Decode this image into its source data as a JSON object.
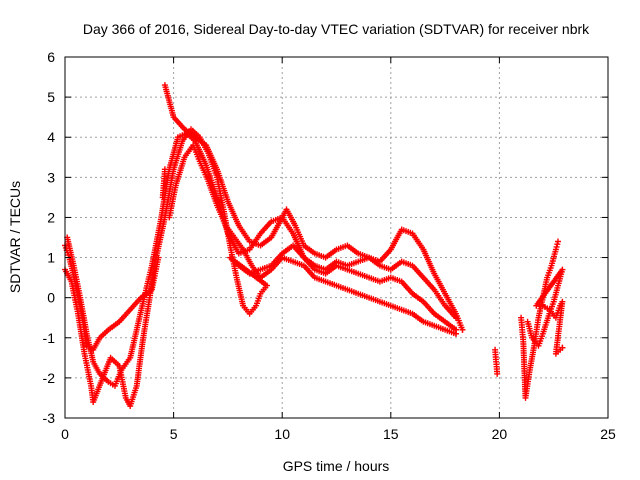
{
  "chart_data": {
    "type": "scatter",
    "title": "Day 366 of 2016, Sidereal Day-to-day VTEC variation (SDTVAR) for receiver nbrk",
    "xlabel": "GPS time / hours",
    "ylabel": "SDTVAR / TECUs",
    "xlim": [
      0,
      25
    ],
    "ylim": [
      -3,
      6
    ],
    "xticks": [
      "0",
      "5",
      "10",
      "15",
      "20",
      "25"
    ],
    "yticks": [
      "-3",
      "-2",
      "-1",
      "0",
      "1",
      "2",
      "3",
      "4",
      "5",
      "6"
    ],
    "grid": true,
    "marker": "plus",
    "color": "#ff0000",
    "series": [
      {
        "name": "track-1",
        "points": [
          [
            0.0,
            1.3
          ],
          [
            0.2,
            1.0
          ],
          [
            0.5,
            0.3
          ],
          [
            0.8,
            -0.5
          ],
          [
            1.0,
            -1.2
          ],
          [
            1.3,
            -1.3
          ],
          [
            1.6,
            -1.0
          ],
          [
            2.0,
            -0.8
          ],
          [
            2.5,
            -0.6
          ],
          [
            3.0,
            -0.3
          ],
          [
            3.5,
            0.0
          ],
          [
            4.0,
            0.2
          ],
          [
            4.3,
            1.0
          ],
          [
            4.5,
            2.5
          ],
          [
            4.6,
            3.2
          ],
          [
            4.6,
            5.3
          ],
          [
            5.0,
            4.5
          ],
          [
            5.5,
            4.2
          ],
          [
            6.0,
            4.0
          ],
          [
            6.5,
            3.8
          ],
          [
            7.0,
            3.2
          ],
          [
            7.5,
            2.4
          ],
          [
            8.0,
            1.8
          ],
          [
            8.5,
            1.4
          ],
          [
            9.0,
            1.3
          ],
          [
            9.5,
            1.5
          ],
          [
            10.0,
            2.0
          ],
          [
            10.2,
            2.2
          ],
          [
            10.6,
            1.8
          ],
          [
            11.0,
            1.3
          ],
          [
            11.5,
            1.1
          ],
          [
            12.0,
            1.0
          ],
          [
            12.5,
            1.2
          ],
          [
            13.0,
            1.3
          ],
          [
            13.5,
            1.1
          ],
          [
            14.0,
            1.0
          ],
          [
            14.5,
            0.9
          ],
          [
            15.0,
            1.2
          ],
          [
            15.5,
            1.7
          ],
          [
            16.0,
            1.6
          ],
          [
            16.5,
            1.2
          ],
          [
            17.0,
            0.6
          ],
          [
            17.5,
            0.1
          ],
          [
            18.0,
            -0.4
          ],
          [
            18.3,
            -0.8
          ]
        ]
      },
      {
        "name": "track-2",
        "points": [
          [
            0.1,
            1.5
          ],
          [
            0.4,
            0.8
          ],
          [
            0.7,
            0.0
          ],
          [
            1.0,
            -0.9
          ],
          [
            1.3,
            -1.6
          ],
          [
            1.6,
            -1.9
          ],
          [
            2.0,
            -2.1
          ],
          [
            2.3,
            -2.2
          ],
          [
            2.6,
            -1.8
          ],
          [
            3.0,
            -1.5
          ],
          [
            3.3,
            -0.8
          ],
          [
            3.6,
            -0.1
          ],
          [
            4.0,
            0.8
          ],
          [
            4.4,
            1.9
          ],
          [
            4.8,
            3.2
          ],
          [
            5.2,
            4.0
          ],
          [
            5.6,
            4.1
          ],
          [
            6.0,
            3.9
          ],
          [
            6.5,
            3.3
          ],
          [
            7.0,
            2.5
          ],
          [
            7.5,
            1.6
          ],
          [
            8.0,
            1.1
          ],
          [
            8.5,
            1.2
          ],
          [
            9.0,
            1.6
          ],
          [
            9.5,
            1.9
          ],
          [
            10.0,
            2.0
          ],
          [
            10.5,
            1.6
          ],
          [
            11.0,
            1.0
          ],
          [
            11.5,
            0.7
          ],
          [
            12.0,
            0.6
          ],
          [
            12.5,
            0.8
          ],
          [
            13.0,
            0.7
          ],
          [
            13.5,
            0.6
          ],
          [
            14.0,
            0.5
          ],
          [
            14.5,
            0.4
          ],
          [
            15.0,
            0.5
          ],
          [
            15.5,
            0.4
          ],
          [
            16.0,
            0.1
          ],
          [
            16.5,
            -0.1
          ],
          [
            17.0,
            -0.4
          ],
          [
            17.5,
            -0.6
          ],
          [
            18.0,
            -0.8
          ]
        ]
      },
      {
        "name": "track-3",
        "points": [
          [
            0.0,
            0.7
          ],
          [
            0.3,
            0.4
          ],
          [
            0.6,
            -0.4
          ],
          [
            0.9,
            -1.4
          ],
          [
            1.2,
            -2.2
          ],
          [
            1.3,
            -2.6
          ],
          [
            2.1,
            -1.5
          ],
          [
            2.5,
            -1.7
          ],
          [
            2.8,
            -2.5
          ],
          [
            3.0,
            -2.7
          ],
          [
            3.3,
            -2.2
          ],
          [
            3.6,
            -1.0
          ],
          [
            3.9,
            0.0
          ],
          [
            4.2,
            1.0
          ],
          [
            4.6,
            2.0
          ],
          [
            5.0,
            3.2
          ],
          [
            5.4,
            3.9
          ],
          [
            5.8,
            4.2
          ],
          [
            6.2,
            4.0
          ],
          [
            6.6,
            3.6
          ],
          [
            7.0,
            3.0
          ],
          [
            7.3,
            2.2
          ],
          [
            7.6,
            1.3
          ],
          [
            7.9,
            0.5
          ],
          [
            8.2,
            -0.2
          ],
          [
            8.5,
            -0.4
          ],
          [
            8.8,
            -0.2
          ],
          [
            9.0,
            0.1
          ],
          [
            9.3,
            0.3
          ],
          [
            7.6,
            1.0
          ],
          [
            8.0,
            0.8
          ],
          [
            8.5,
            0.6
          ],
          [
            9.0,
            0.7
          ],
          [
            9.5,
            0.8
          ],
          [
            10.0,
            1.1
          ],
          [
            10.5,
            1.3
          ],
          [
            11.0,
            1.0
          ],
          [
            11.5,
            0.8
          ],
          [
            12.0,
            0.7
          ],
          [
            12.5,
            0.9
          ],
          [
            13.0,
            0.8
          ],
          [
            13.5,
            0.9
          ],
          [
            14.0,
            1.0
          ],
          [
            14.5,
            0.8
          ],
          [
            15.0,
            0.7
          ],
          [
            15.5,
            0.9
          ],
          [
            16.0,
            0.8
          ],
          [
            16.5,
            0.5
          ],
          [
            17.0,
            0.2
          ],
          [
            17.5,
            -0.2
          ],
          [
            18.0,
            -0.5
          ]
        ]
      },
      {
        "name": "track-4",
        "points": [
          [
            4.8,
            2.0
          ],
          [
            5.1,
            2.8
          ],
          [
            5.5,
            3.5
          ],
          [
            5.9,
            3.8
          ],
          [
            6.2,
            3.4
          ],
          [
            6.6,
            2.9
          ],
          [
            7.0,
            2.3
          ],
          [
            7.4,
            1.8
          ],
          [
            7.8,
            1.5
          ],
          [
            8.2,
            1.2
          ],
          [
            8.6,
            0.8
          ],
          [
            9.0,
            0.5
          ],
          [
            9.5,
            0.7
          ],
          [
            10.0,
            1.0
          ],
          [
            10.5,
            0.9
          ],
          [
            11.0,
            0.8
          ],
          [
            11.5,
            0.5
          ],
          [
            12.0,
            0.4
          ],
          [
            12.5,
            0.3
          ],
          [
            13.0,
            0.2
          ],
          [
            13.5,
            0.1
          ],
          [
            14.0,
            0.0
          ],
          [
            14.5,
            -0.1
          ],
          [
            15.0,
            -0.2
          ],
          [
            15.5,
            -0.3
          ],
          [
            16.0,
            -0.4
          ],
          [
            16.5,
            -0.6
          ],
          [
            17.0,
            -0.7
          ],
          [
            17.5,
            -0.8
          ],
          [
            18.0,
            -0.9
          ]
        ]
      },
      {
        "name": "track-5",
        "points": [
          [
            19.8,
            -1.3
          ],
          [
            19.85,
            -1.6
          ],
          [
            19.9,
            -1.9
          ],
          [
            21.0,
            -0.5
          ],
          [
            21.1,
            -1.1
          ],
          [
            21.2,
            -2.5
          ],
          [
            21.4,
            -1.8
          ],
          [
            21.6,
            -1.2
          ],
          [
            21.8,
            -0.5
          ],
          [
            22.0,
            0.0
          ],
          [
            22.2,
            0.5
          ],
          [
            22.4,
            0.8
          ],
          [
            22.6,
            1.2
          ],
          [
            22.7,
            1.4
          ],
          [
            21.3,
            -0.6
          ],
          [
            21.5,
            -1.0
          ],
          [
            21.8,
            -1.2
          ],
          [
            22.0,
            -0.9
          ],
          [
            22.3,
            -0.4
          ],
          [
            22.5,
            -0.1
          ],
          [
            22.7,
            0.3
          ],
          [
            22.9,
            0.7
          ],
          [
            21.7,
            -0.2
          ],
          [
            22.0,
            -0.2
          ],
          [
            22.3,
            -0.3
          ],
          [
            22.6,
            -0.5
          ],
          [
            22.8,
            -0.2
          ],
          [
            22.9,
            -0.1
          ],
          [
            22.6,
            -1.4
          ],
          [
            22.8,
            -1.3
          ],
          [
            22.9,
            -1.25
          ]
        ]
      }
    ]
  }
}
